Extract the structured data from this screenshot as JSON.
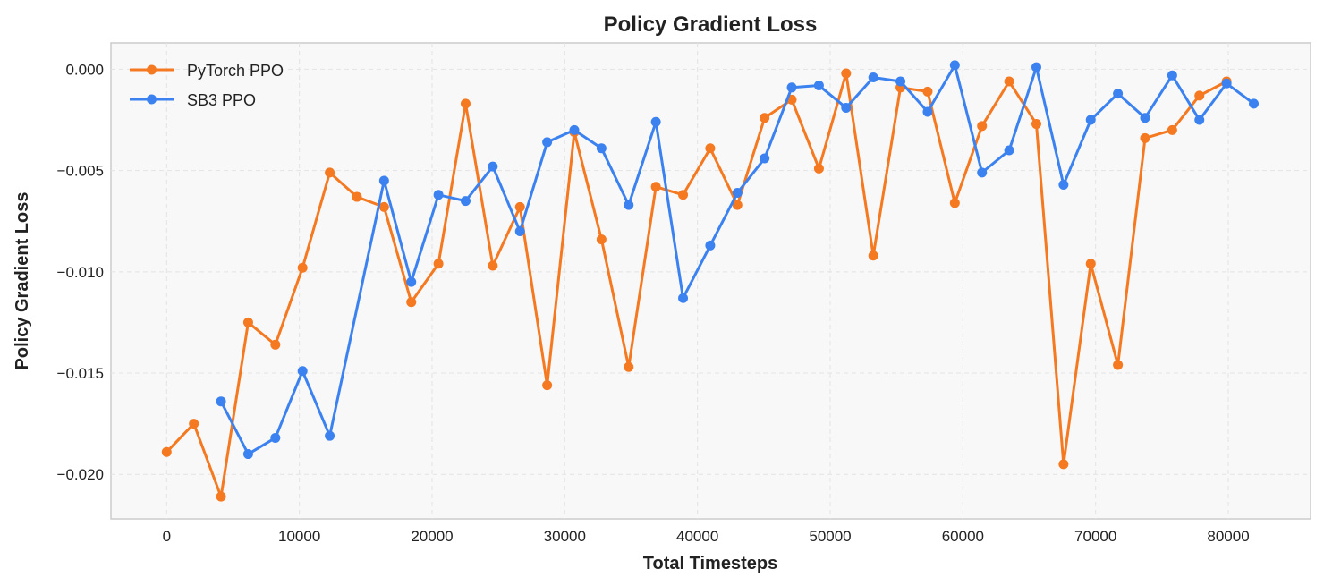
{
  "chart_data": {
    "type": "line",
    "title": "Policy Gradient Loss",
    "xlabel": "Total Timesteps",
    "ylabel": "Policy Gradient Loss",
    "xlim": [
      -4200,
      86200
    ],
    "ylim": [
      -0.0222,
      0.0013
    ],
    "xticks": [
      0,
      10000,
      20000,
      30000,
      40000,
      50000,
      60000,
      70000,
      80000
    ],
    "xtick_labels": [
      "0",
      "10000",
      "20000",
      "30000",
      "40000",
      "50000",
      "60000",
      "70000",
      "80000"
    ],
    "yticks": [
      0.0,
      -0.005,
      -0.01,
      -0.015,
      -0.02
    ],
    "ytick_labels": [
      "0.000",
      "−0.005",
      "−0.010",
      "−0.015",
      "−0.020"
    ],
    "grid": true,
    "legend_position": "top-left",
    "series": [
      {
        "name": "PyTorch PPO",
        "color": "#f47920",
        "x": [
          0,
          2048,
          4096,
          6144,
          8192,
          10240,
          12288,
          14336,
          16384,
          18432,
          20480,
          22528,
          24576,
          26624,
          28672,
          30720,
          32768,
          34816,
          36864,
          38912,
          40960,
          43008,
          45056,
          47104,
          49152,
          51200,
          53248,
          55296,
          57344,
          59392,
          61440,
          63488,
          65536,
          67584,
          69632,
          71680,
          73728,
          75776,
          77824,
          79872
        ],
        "y": [
          -0.0189,
          -0.0175,
          -0.0211,
          -0.0125,
          -0.0136,
          -0.0098,
          -0.0051,
          -0.0063,
          -0.0068,
          -0.0115,
          -0.0096,
          -0.0017,
          -0.0097,
          -0.0068,
          -0.0156,
          -0.0031,
          -0.0084,
          -0.0147,
          -0.0058,
          -0.0062,
          -0.0039,
          -0.0067,
          -0.0024,
          -0.0015,
          -0.0049,
          -0.0002,
          -0.0092,
          -0.0009,
          -0.0011,
          -0.0066,
          -0.0028,
          -0.0006,
          -0.0027,
          -0.0195,
          -0.0096,
          -0.0146,
          -0.0034,
          -0.003,
          -0.0013,
          -0.0006
        ]
      },
      {
        "name": "SB3 PPO",
        "color": "#3b82f0",
        "x": [
          4096,
          6144,
          8192,
          10240,
          12288,
          16384,
          18432,
          20480,
          22528,
          24576,
          26624,
          28672,
          30720,
          32768,
          34816,
          36864,
          38912,
          40960,
          43008,
          45056,
          47104,
          49152,
          51200,
          53248,
          55296,
          57344,
          59392,
          61440,
          63488,
          65536,
          67584,
          69632,
          71680,
          73728,
          75776,
          77824,
          79872,
          81920
        ],
        "y": [
          -0.0164,
          -0.019,
          -0.0182,
          -0.0149,
          -0.0181,
          -0.0055,
          -0.0105,
          -0.0062,
          -0.0065,
          -0.0048,
          -0.008,
          -0.0036,
          -0.003,
          -0.0039,
          -0.0067,
          -0.0026,
          -0.0113,
          -0.0087,
          -0.0061,
          -0.0044,
          -0.0009,
          -0.0008,
          -0.0019,
          -0.0004,
          -0.0006,
          -0.0021,
          0.0002,
          -0.0051,
          -0.004,
          0.0001,
          -0.0057,
          -0.0025,
          -0.0012,
          -0.0024,
          -0.0003,
          -0.0025,
          -0.0007,
          -0.0017
        ]
      }
    ]
  }
}
